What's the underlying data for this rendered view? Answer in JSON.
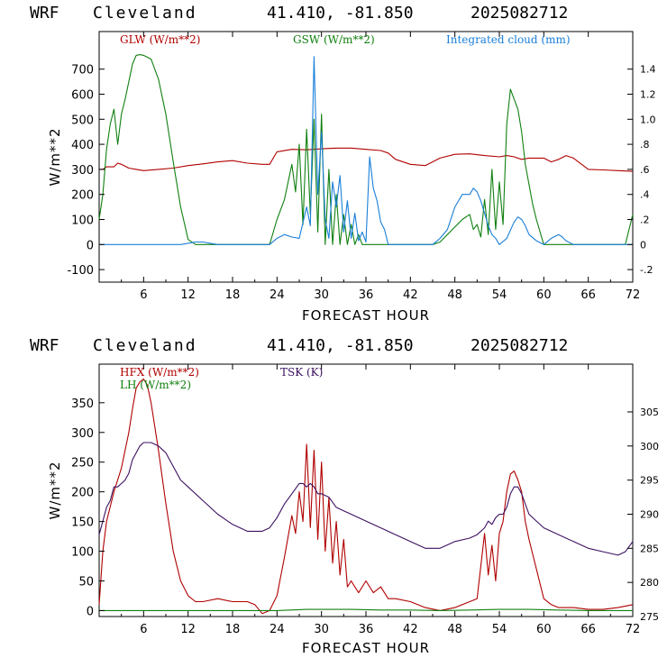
{
  "page": {
    "background": "#ffffff"
  },
  "chart_data": [
    {
      "type": "line",
      "header": {
        "model": "WRF",
        "location": "Cleveland",
        "coords": "41.410, -81.850",
        "run": "2025082712"
      },
      "xlabel": "FORECAST HOUR",
      "ylabel": "W/m**2",
      "xlim": [
        0,
        72
      ],
      "ylim": [
        -150,
        850
      ],
      "y2lim": [
        -0.3,
        1.7
      ],
      "x_ticks": [
        6,
        12,
        18,
        24,
        30,
        36,
        42,
        48,
        54,
        60,
        66,
        72
      ],
      "y_ticks": [
        -100,
        0,
        100,
        200,
        300,
        400,
        500,
        600,
        700
      ],
      "y2_ticks": [
        -0.2,
        0,
        0.2,
        0.4,
        0.6,
        0.8,
        1.0,
        1.2,
        1.4
      ],
      "y2_tick_labels": [
        "-.2",
        "0",
        ".2",
        ".4",
        ".6",
        ".8",
        "1.0",
        "1.2",
        "1.4"
      ],
      "series": [
        {
          "name": "GLW (W/m**2)",
          "axis": "left",
          "color": "#b00000",
          "x": [
            0,
            0.5,
            1,
            2,
            2.5,
            3,
            4,
            5,
            6,
            8,
            10,
            12,
            14,
            16,
            18,
            20,
            22,
            23,
            24,
            26,
            28,
            30,
            32,
            34,
            36,
            38,
            39,
            40,
            42,
            44,
            46,
            48,
            50,
            52,
            54,
            55,
            56,
            57,
            58,
            60,
            61,
            62,
            63,
            64,
            66,
            68,
            70,
            72
          ],
          "y": [
            300,
            300,
            310,
            310,
            325,
            320,
            305,
            300,
            295,
            300,
            305,
            315,
            322,
            330,
            335,
            325,
            320,
            320,
            370,
            380,
            378,
            382,
            385,
            385,
            380,
            375,
            365,
            340,
            320,
            315,
            345,
            360,
            362,
            355,
            350,
            355,
            350,
            340,
            345,
            345,
            330,
            340,
            355,
            345,
            300,
            298,
            295,
            292
          ]
        },
        {
          "name": "GSW (W/m**2)",
          "axis": "left",
          "color": "#108010",
          "x": [
            0,
            0.5,
            1,
            1.5,
            2,
            2.5,
            3,
            3.5,
            4,
            4.5,
            5,
            5.5,
            6,
            7,
            8,
            9,
            10,
            11,
            12,
            13,
            23,
            24,
            25,
            26,
            26.5,
            27,
            27.5,
            28,
            28.5,
            29,
            29.5,
            30,
            30.5,
            31,
            31.5,
            32,
            32.5,
            33,
            33.5,
            34,
            34.5,
            35,
            35.5,
            36,
            36.5,
            37,
            37.5,
            38,
            38.5,
            39,
            45,
            46,
            47,
            48,
            49,
            50,
            50.5,
            51,
            51.5,
            52,
            52.5,
            53,
            53.5,
            54,
            54.5,
            55,
            55.5,
            56,
            56.5,
            57,
            57.5,
            58,
            58.5,
            59,
            59.5,
            60,
            71,
            72
          ],
          "y": [
            100,
            200,
            380,
            480,
            540,
            400,
            520,
            580,
            650,
            720,
            755,
            758,
            755,
            740,
            660,
            520,
            330,
            150,
            20,
            0,
            0,
            100,
            180,
            320,
            210,
            400,
            80,
            460,
            120,
            500,
            50,
            520,
            0,
            300,
            0,
            200,
            0,
            120,
            0,
            80,
            0,
            40,
            0,
            0,
            0,
            0,
            0,
            0,
            0,
            0,
            0,
            10,
            40,
            70,
            100,
            120,
            60,
            80,
            30,
            180,
            40,
            300,
            60,
            250,
            80,
            480,
            620,
            580,
            540,
            450,
            320,
            240,
            160,
            100,
            50,
            0,
            0,
            120
          ]
        },
        {
          "name": "Integrated cloud (mm)",
          "axis": "right",
          "color": "#1a7fd8",
          "x": [
            0,
            10,
            11,
            12,
            13,
            14,
            15,
            16,
            23,
            24,
            25,
            26,
            27,
            28,
            28.5,
            29,
            29.5,
            30,
            30.5,
            31,
            31.5,
            32,
            32.5,
            33,
            33.5,
            34,
            34.5,
            35,
            35.5,
            36,
            36.5,
            37,
            37.5,
            38,
            38.5,
            39,
            45,
            46,
            47,
            48,
            49,
            50,
            50.5,
            51,
            51.5,
            52,
            52.5,
            53,
            53.5,
            54,
            55,
            56,
            56.5,
            57,
            57.5,
            58,
            59,
            60,
            61,
            62,
            62.5,
            63,
            64,
            72
          ],
          "y": [
            0,
            0,
            0,
            0.01,
            0.02,
            0.02,
            0.01,
            0,
            0,
            0.05,
            0.08,
            0.06,
            0.05,
            0.3,
            0.15,
            1.5,
            0.4,
            0.9,
            0.2,
            0.05,
            0.5,
            0.3,
            0.55,
            0.1,
            0.35,
            0.05,
            0.25,
            0.03,
            0.1,
            0.02,
            0.7,
            0.45,
            0.35,
            0.18,
            0.12,
            0,
            0,
            0.05,
            0.12,
            0.3,
            0.4,
            0.4,
            0.45,
            0.42,
            0.35,
            0.25,
            0.15,
            0.08,
            0.05,
            0,
            0.05,
            0.18,
            0.22,
            0.2,
            0.15,
            0.08,
            0.03,
            0,
            0.05,
            0.08,
            0.06,
            0.03,
            0,
            0
          ]
        }
      ],
      "legend": {
        "placement": "top"
      }
    },
    {
      "type": "line",
      "header": {
        "model": "WRF",
        "location": "Cleveland",
        "coords": "41.410, -81.850",
        "run": "2025082712"
      },
      "xlabel": "FORECAST HOUR",
      "ylabel": "W/m**2",
      "xlim": [
        0,
        72
      ],
      "ylim": [
        -10,
        415
      ],
      "y2lim": [
        275,
        312
      ],
      "x_ticks": [
        6,
        12,
        18,
        24,
        30,
        36,
        42,
        48,
        54,
        60,
        66,
        72
      ],
      "y_ticks": [
        0,
        50,
        100,
        150,
        200,
        250,
        300,
        350
      ],
      "y2_ticks": [
        275,
        280,
        285,
        290,
        295,
        300,
        305
      ],
      "y2_tick_labels": [
        "275",
        "280",
        "285",
        "290",
        "295",
        "300",
        "305"
      ],
      "series": [
        {
          "name": "HFX (W/m**2)",
          "axis": "left",
          "color": "#b00000",
          "x": [
            0,
            0.5,
            1,
            2,
            3,
            4,
            4.5,
            5,
            5.5,
            6,
            6.5,
            7,
            8,
            9,
            10,
            11,
            12,
            13,
            14,
            16,
            18,
            20,
            21,
            22,
            23,
            24,
            25,
            26,
            26.5,
            27,
            27.5,
            28,
            28.5,
            29,
            29.5,
            30,
            30.5,
            31,
            31.5,
            32,
            32.5,
            33,
            33.5,
            34,
            35,
            36,
            37,
            38,
            39,
            40,
            42,
            44,
            46,
            48,
            50,
            51,
            52,
            52.5,
            53,
            53.5,
            54,
            54.5,
            55,
            55.5,
            56,
            56.5,
            57,
            57.5,
            58,
            59,
            60,
            61,
            62,
            64,
            66,
            68,
            70,
            72
          ],
          "y": [
            10,
            100,
            150,
            200,
            240,
            300,
            340,
            375,
            385,
            390,
            380,
            350,
            270,
            180,
            100,
            50,
            25,
            15,
            15,
            20,
            15,
            15,
            10,
            -5,
            0,
            25,
            90,
            160,
            130,
            200,
            150,
            280,
            140,
            270,
            120,
            250,
            100,
            190,
            80,
            150,
            60,
            120,
            40,
            50,
            30,
            50,
            30,
            40,
            20,
            20,
            15,
            5,
            0,
            5,
            15,
            20,
            130,
            60,
            110,
            50,
            130,
            150,
            200,
            230,
            235,
            220,
            200,
            150,
            120,
            70,
            20,
            10,
            5,
            5,
            2,
            2,
            5,
            10
          ]
        },
        {
          "name": "LH (W/m**2)",
          "axis": "left",
          "color": "#108010",
          "x": [
            0,
            10,
            20,
            24,
            28,
            34,
            38,
            42,
            46,
            50,
            54,
            58,
            62,
            66,
            70,
            72
          ],
          "y": [
            0,
            0,
            0,
            0,
            2,
            2,
            1,
            1,
            0,
            1,
            2,
            2,
            1,
            0,
            0,
            0
          ]
        },
        {
          "name": "TSK (K)",
          "axis": "right",
          "color": "#3c1060",
          "x": [
            0,
            0.5,
            1,
            1.5,
            2,
            2.5,
            3,
            3.5,
            4,
            4.5,
            5,
            5.5,
            6,
            7,
            8,
            9,
            10,
            11,
            12,
            14,
            16,
            18,
            20,
            22,
            23,
            24,
            25,
            26,
            27,
            27.5,
            28,
            28.5,
            29,
            29.5,
            30,
            31,
            32,
            33,
            34,
            36,
            38,
            40,
            42,
            44,
            46,
            48,
            50,
            51,
            52,
            52.5,
            53,
            53.5,
            54,
            54.5,
            55,
            55.5,
            56,
            56.5,
            57,
            58,
            59,
            60,
            62,
            64,
            66,
            68,
            70,
            71,
            72
          ],
          "y": [
            287,
            289,
            291,
            292,
            294,
            294,
            294.5,
            295,
            296,
            298,
            299,
            300,
            300.5,
            300.5,
            300,
            299,
            297,
            295,
            294,
            292,
            290,
            288.5,
            287.5,
            287.5,
            288,
            289.5,
            291.5,
            293,
            294.5,
            294.5,
            294,
            294.5,
            294,
            293,
            293,
            292.5,
            291,
            290.5,
            290,
            289,
            288,
            287,
            286,
            285,
            285,
            286,
            286.5,
            287,
            288,
            289,
            288.5,
            289.5,
            290,
            290,
            291,
            293,
            294,
            294,
            293,
            290,
            289,
            288,
            287,
            286,
            285,
            284.5,
            284,
            284.5,
            286
          ]
        }
      ],
      "legend": {
        "placement": "top-left"
      }
    }
  ]
}
